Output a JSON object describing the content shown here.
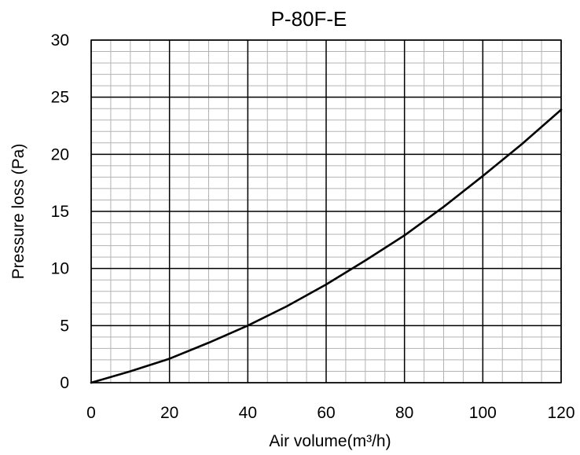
{
  "chart_data": {
    "type": "line",
    "title": "P-80F-E",
    "xlabel": "Air volume(m³/h)",
    "ylabel": "Pressure loss (Pa)",
    "xlim": [
      0,
      120
    ],
    "ylim": [
      0,
      30
    ],
    "x_ticks": [
      "0",
      "20",
      "40",
      "60",
      "80",
      "100",
      "120"
    ],
    "y_ticks": [
      "0",
      "5",
      "10",
      "15",
      "20",
      "25",
      "30"
    ],
    "major_grid": {
      "x_step": 20,
      "y_step": 5
    },
    "minor_grid": {
      "x_step": 5,
      "y_step": 1
    },
    "grid": true,
    "legend": "none",
    "colors": {
      "line": "#000000",
      "major_grid": "#000000",
      "minor_grid": "#b3b3b3"
    },
    "series": [
      {
        "x": [
          0,
          10,
          20,
          30,
          40,
          50,
          60,
          70,
          80,
          90,
          100,
          110,
          120
        ],
        "y": [
          0,
          1.0,
          2.1,
          3.5,
          5.0,
          6.7,
          8.6,
          10.7,
          12.9,
          15.4,
          18.1,
          20.9,
          23.9
        ]
      }
    ]
  }
}
